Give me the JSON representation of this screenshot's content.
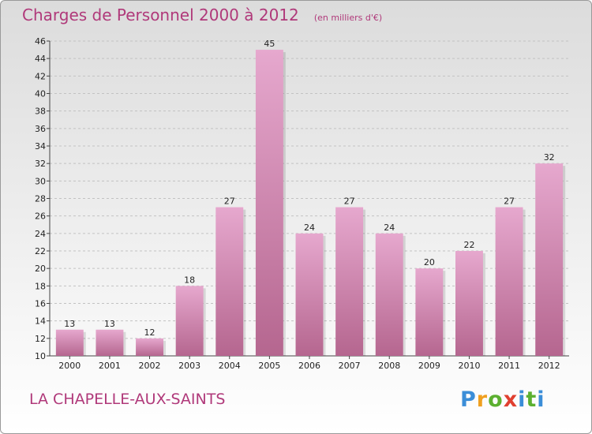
{
  "title": "Charges de Personnel 2000 à 2012",
  "subtitle": "(en milliers d'€)",
  "commune": "LA CHAPELLE-AUX-SAINTS",
  "logo_text": "Proxiti",
  "colors": {
    "bar_top": "#e6a8ce",
    "bar_bottom": "#b5668f",
    "title": "#b0397a"
  },
  "chart_data": {
    "type": "bar",
    "title": "Charges de Personnel 2000 à 2012",
    "subtitle": "(en milliers d'€)",
    "xlabel": "",
    "ylabel": "",
    "categories": [
      "2000",
      "2001",
      "2002",
      "2003",
      "2004",
      "2005",
      "2006",
      "2007",
      "2008",
      "2009",
      "2010",
      "2011",
      "2012"
    ],
    "values": [
      13,
      13,
      12,
      18,
      27,
      45,
      24,
      27,
      24,
      20,
      22,
      27,
      32
    ],
    "ylim": [
      10,
      46
    ],
    "yticks": [
      10,
      12,
      14,
      16,
      18,
      20,
      22,
      24,
      26,
      28,
      30,
      32,
      34,
      36,
      38,
      40,
      42,
      44,
      46
    ],
    "grid": true,
    "data_labels": true
  }
}
